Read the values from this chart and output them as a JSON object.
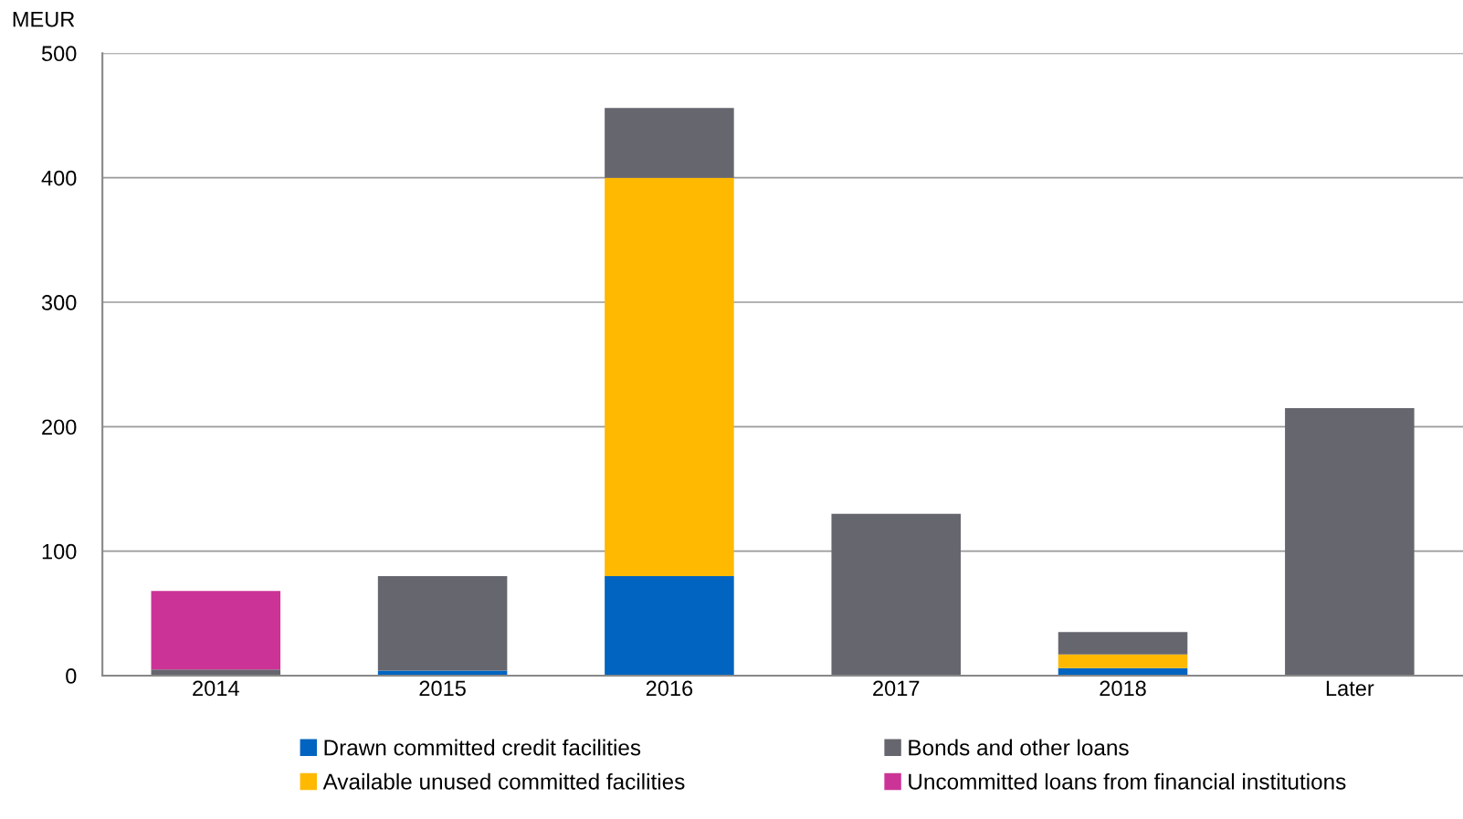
{
  "chart_data": {
    "type": "bar",
    "stacked": true,
    "ylabel": "MEUR",
    "categories": [
      "2014",
      "2015",
      "2016",
      "2017",
      "2018",
      "Later"
    ],
    "series": [
      {
        "name": "Drawn committed credit facilities",
        "color": "#0064c0",
        "values": [
          0,
          4,
          80,
          0,
          6,
          0
        ]
      },
      {
        "name": "Available unused committed facilities",
        "color": "#ffb900",
        "values": [
          0,
          0,
          320,
          0,
          11,
          0
        ]
      },
      {
        "name": "Bonds and other loans",
        "color": "#66666f",
        "values": [
          5,
          76,
          56,
          130,
          18,
          215
        ]
      },
      {
        "name": "Uncommitted loans from financial institutions",
        "color": "#cb3496",
        "values": [
          63,
          0,
          0,
          0,
          0,
          0
        ]
      }
    ],
    "ylim": [
      0,
      500
    ],
    "yticks": [
      0,
      100,
      200,
      300,
      400,
      500
    ],
    "grid": "y",
    "legend": "bottom"
  }
}
